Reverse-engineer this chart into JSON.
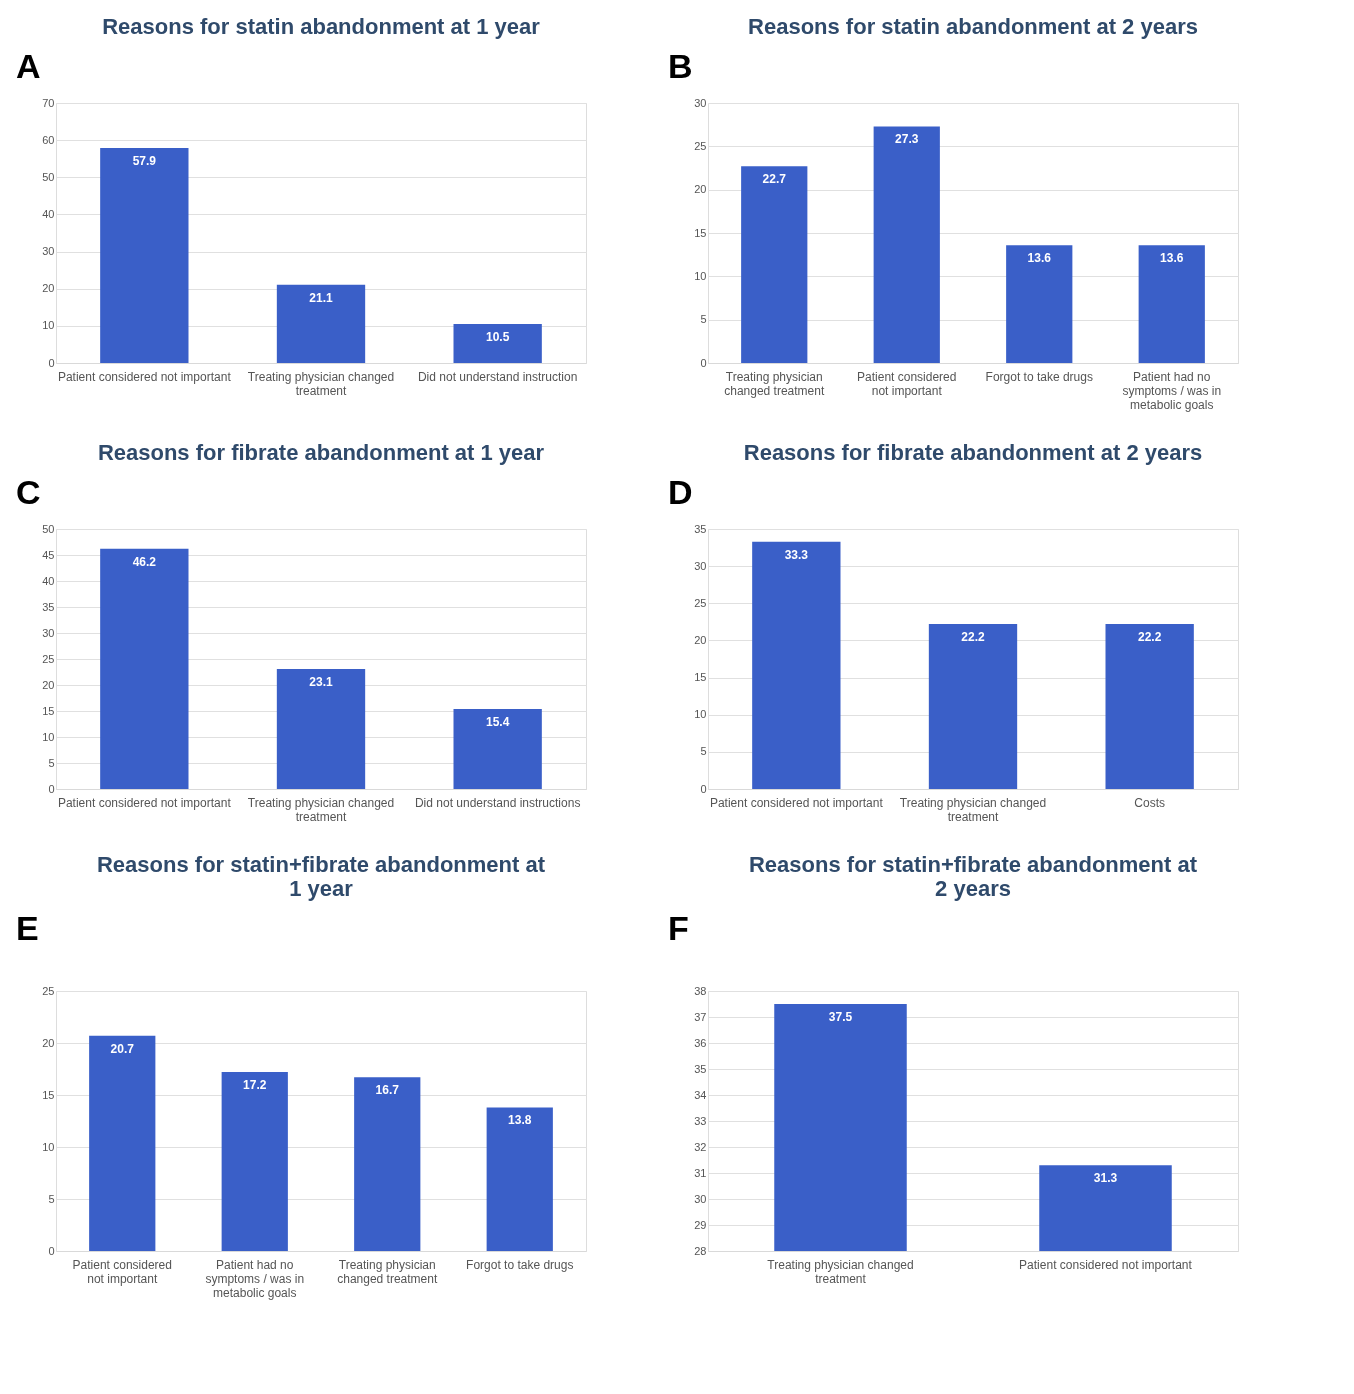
{
  "chart_data": [
    {
      "type": "bar",
      "annotations": [
        "A"
      ],
      "title": "Reasons for statin abandonment at 1 year",
      "categories": [
        "Patient considered not important",
        "Treating physician changed treatment",
        "Did not understand instruction"
      ],
      "values": [
        57.9,
        21.1,
        10.5
      ],
      "color": "#3a5fc8",
      "ylim": [
        0,
        70
      ],
      "yticks": [
        0,
        10,
        20,
        30,
        40,
        50,
        60,
        70
      ],
      "grid": "y",
      "data_labels": true
    },
    {
      "type": "bar",
      "annotations": [
        "B"
      ],
      "title": "Reasons for statin abandonment at 2 years",
      "categories": [
        "Treating physician changed treatment",
        "Patient considered not important",
        "Forgot to take drugs",
        "Patient had no symptoms / was in metabolic goals"
      ],
      "values": [
        22.7,
        27.3,
        13.6,
        13.6
      ],
      "color": "#3a5fc8",
      "ylim": [
        0,
        30
      ],
      "yticks": [
        0,
        5,
        10,
        15,
        20,
        25,
        30
      ],
      "grid": "y",
      "data_labels": true
    },
    {
      "type": "bar",
      "annotations": [
        "C"
      ],
      "title": "Reasons for fibrate abandonment at 1 year",
      "categories": [
        "Patient considered not important",
        "Treating physician changed treatment",
        "Did not understand instructions"
      ],
      "values": [
        46.2,
        23.1,
        15.4
      ],
      "color": "#3a5fc8",
      "ylim": [
        0,
        50
      ],
      "yticks": [
        0,
        5,
        10,
        15,
        20,
        25,
        30,
        35,
        40,
        45,
        50
      ],
      "grid": "y",
      "data_labels": true
    },
    {
      "type": "bar",
      "annotations": [
        "D"
      ],
      "title": "Reasons for fibrate abandonment at 2 years",
      "categories": [
        "Patient considered not important",
        "Treating physician changed treatment",
        "Costs"
      ],
      "values": [
        33.3,
        22.2,
        22.2
      ],
      "color": "#3a5fc8",
      "ylim": [
        0,
        35
      ],
      "yticks": [
        0,
        5,
        10,
        15,
        20,
        25,
        30,
        35
      ],
      "grid": "y",
      "data_labels": true
    },
    {
      "type": "bar",
      "annotations": [
        "E"
      ],
      "title": "Reasons for statin+fibrate abandonment at 1 year",
      "categories": [
        "Patient considered not important",
        "Patient had no symptoms / was in metabolic goals",
        "Treating physician changed treatment",
        "Forgot to take drugs"
      ],
      "values": [
        20.7,
        17.2,
        16.7,
        13.8
      ],
      "color": "#3a5fc8",
      "ylim": [
        0,
        25
      ],
      "yticks": [
        0,
        5,
        10,
        15,
        20,
        25
      ],
      "grid": "y",
      "data_labels": true
    },
    {
      "type": "bar",
      "annotations": [
        "F"
      ],
      "title": "Reasons for statin+fibrate abandonment at 2 years",
      "categories": [
        "Treating physician changed treatment",
        "Patient considered not important"
      ],
      "values": [
        37.5,
        31.3
      ],
      "color": "#3a5fc8",
      "ylim": [
        28,
        38
      ],
      "yticks": [
        28,
        29,
        30,
        31,
        32,
        33,
        34,
        35,
        36,
        37,
        38
      ],
      "grid": "y",
      "data_labels": true
    }
  ]
}
